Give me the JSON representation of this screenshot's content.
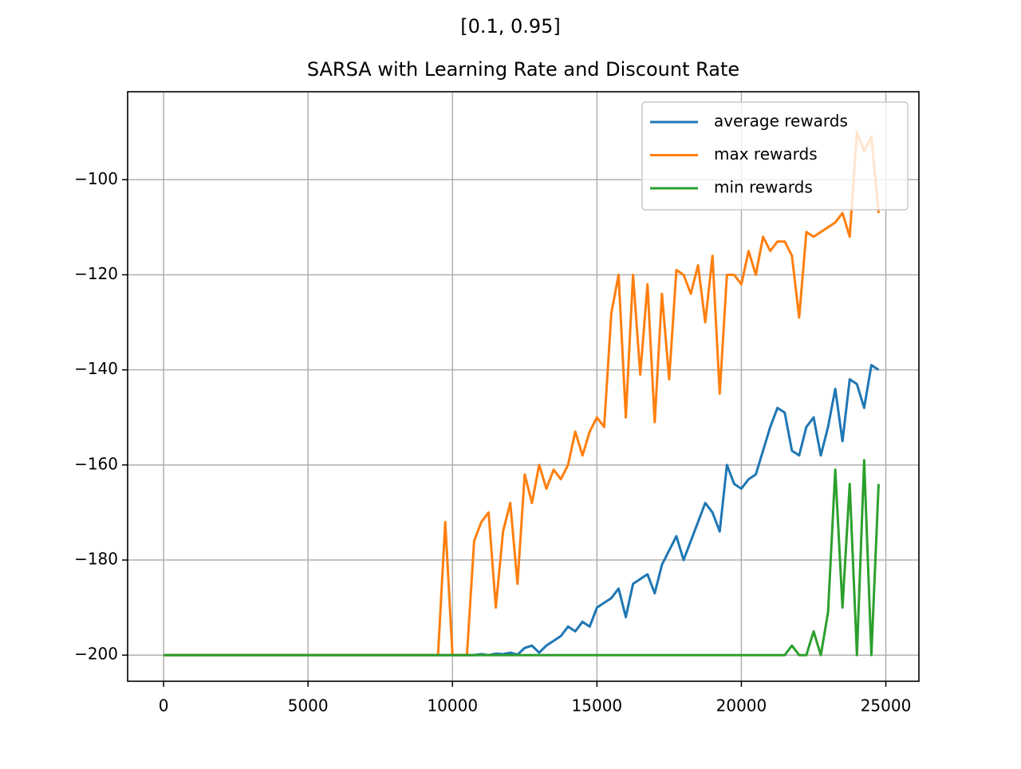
{
  "chart_data": {
    "type": "line",
    "suptitle": "[0.1, 0.95]",
    "title": "SARSA with Learning Rate and Discount Rate",
    "x": [
      0,
      250,
      500,
      750,
      1000,
      1250,
      1500,
      1750,
      2000,
      2250,
      2500,
      2750,
      3000,
      3250,
      3500,
      3750,
      4000,
      4250,
      4500,
      4750,
      5000,
      5250,
      5500,
      5750,
      6000,
      6250,
      6500,
      6750,
      7000,
      7250,
      7500,
      7750,
      8000,
      8250,
      8500,
      8750,
      9000,
      9250,
      9500,
      9750,
      10000,
      10250,
      10500,
      10750,
      11000,
      11250,
      11500,
      11750,
      12000,
      12250,
      12500,
      12750,
      13000,
      13250,
      13500,
      13750,
      14000,
      14250,
      14500,
      14750,
      15000,
      15250,
      15500,
      15750,
      16000,
      16250,
      16500,
      16750,
      17000,
      17250,
      17500,
      17750,
      18000,
      18250,
      18500,
      18750,
      19000,
      19250,
      19500,
      19750,
      20000,
      20250,
      20500,
      20750,
      21000,
      21250,
      21500,
      21750,
      22000,
      22250,
      22500,
      22750,
      23000,
      23250,
      23500,
      23750,
      24000,
      24250,
      24500,
      24750
    ],
    "series": [
      {
        "name": "average rewards",
        "color": "#1f77b4",
        "values": [
          -200,
          -200,
          -200,
          -200,
          -200,
          -200,
          -200,
          -200,
          -200,
          -200,
          -200,
          -200,
          -200,
          -200,
          -200,
          -200,
          -200,
          -200,
          -200,
          -200,
          -200,
          -200,
          -200,
          -200,
          -200,
          -200,
          -200,
          -200,
          -200,
          -200,
          -200,
          -200,
          -200,
          -200,
          -200,
          -200,
          -200,
          -200,
          -200,
          -200,
          -200,
          -200,
          -200,
          -200,
          -199.8,
          -200,
          -199.7,
          -199.8,
          -199.5,
          -199.9,
          -198.5,
          -198,
          -199.5,
          -198,
          -197,
          -196,
          -194,
          -195,
          -193,
          -194,
          -190,
          -189,
          -188,
          -186,
          -192,
          -185,
          -184,
          -183,
          -187,
          -181,
          -178,
          -175,
          -180,
          -176,
          -172,
          -168,
          -170,
          -174,
          -160,
          -164,
          -165,
          -163,
          -162,
          -157,
          -152,
          -148,
          -149,
          -157,
          -158,
          -152,
          -150,
          -158,
          -152,
          -144,
          -155,
          -142,
          -143,
          -148,
          -139,
          -140
        ]
      },
      {
        "name": "max rewards",
        "color": "#ff7f0e",
        "values": [
          -200,
          -200,
          -200,
          -200,
          -200,
          -200,
          -200,
          -200,
          -200,
          -200,
          -200,
          -200,
          -200,
          -200,
          -200,
          -200,
          -200,
          -200,
          -200,
          -200,
          -200,
          -200,
          -200,
          -200,
          -200,
          -200,
          -200,
          -200,
          -200,
          -200,
          -200,
          -200,
          -200,
          -200,
          -200,
          -200,
          -200,
          -200,
          -200,
          -172,
          -200,
          -200,
          -200,
          -176,
          -172,
          -170,
          -190,
          -174,
          -168,
          -185,
          -162,
          -168,
          -160,
          -165,
          -161,
          -163,
          -160,
          -153,
          -158,
          -153,
          -150,
          -152,
          -128,
          -120,
          -150,
          -120,
          -141,
          -122,
          -151,
          -124,
          -142,
          -119,
          -120,
          -124,
          -118,
          -130,
          -116,
          -145,
          -120,
          -120,
          -122,
          -115,
          -120,
          -112,
          -115,
          -113,
          -113,
          -116,
          -129,
          -111,
          -112,
          -111,
          -110,
          -109,
          -107,
          -112,
          -90,
          -94,
          -91,
          -107
        ]
      },
      {
        "name": "min rewards",
        "color": "#2ca02c",
        "values": [
          -200,
          -200,
          -200,
          -200,
          -200,
          -200,
          -200,
          -200,
          -200,
          -200,
          -200,
          -200,
          -200,
          -200,
          -200,
          -200,
          -200,
          -200,
          -200,
          -200,
          -200,
          -200,
          -200,
          -200,
          -200,
          -200,
          -200,
          -200,
          -200,
          -200,
          -200,
          -200,
          -200,
          -200,
          -200,
          -200,
          -200,
          -200,
          -200,
          -200,
          -200,
          -200,
          -200,
          -200,
          -200,
          -200,
          -200,
          -200,
          -200,
          -200,
          -200,
          -200,
          -200,
          -200,
          -200,
          -200,
          -200,
          -200,
          -200,
          -200,
          -200,
          -200,
          -200,
          -200,
          -200,
          -200,
          -200,
          -200,
          -200,
          -200,
          -200,
          -200,
          -200,
          -200,
          -200,
          -200,
          -200,
          -200,
          -200,
          -200,
          -200,
          -200,
          -200,
          -200,
          -200,
          -200,
          -200,
          -198,
          -200,
          -200,
          -195,
          -200,
          -191,
          -161,
          -190,
          -164,
          -200,
          -159,
          -200,
          -164
        ]
      }
    ],
    "xlim": [
      -1245,
      26145
    ],
    "ylim": [
      -205.5,
      -81.5
    ],
    "xticks": [
      0,
      5000,
      10000,
      15000,
      20000,
      25000
    ],
    "yticks": [
      {
        "value": -200,
        "label": "−200"
      },
      {
        "value": -180,
        "label": "−180"
      },
      {
        "value": -160,
        "label": "−160"
      },
      {
        "value": -140,
        "label": "−140"
      },
      {
        "value": -120,
        "label": "−120"
      },
      {
        "value": -100,
        "label": "−100"
      }
    ],
    "grid": true,
    "legend": "upper right"
  }
}
